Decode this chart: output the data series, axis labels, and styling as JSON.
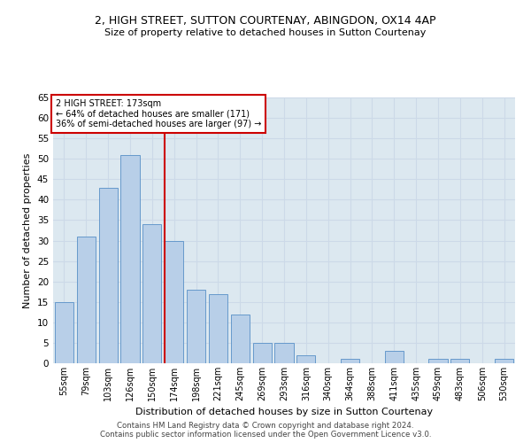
{
  "title": "2, HIGH STREET, SUTTON COURTENAY, ABINGDON, OX14 4AP",
  "subtitle": "Size of property relative to detached houses in Sutton Courtenay",
  "xlabel": "Distribution of detached houses by size in Sutton Courtenay",
  "ylabel": "Number of detached properties",
  "categories": [
    "55sqm",
    "79sqm",
    "103sqm",
    "126sqm",
    "150sqm",
    "174sqm",
    "198sqm",
    "221sqm",
    "245sqm",
    "269sqm",
    "293sqm",
    "316sqm",
    "340sqm",
    "364sqm",
    "388sqm",
    "411sqm",
    "435sqm",
    "459sqm",
    "483sqm",
    "506sqm",
    "530sqm"
  ],
  "values": [
    15,
    31,
    43,
    51,
    34,
    30,
    18,
    17,
    12,
    5,
    5,
    2,
    0,
    1,
    0,
    3,
    0,
    1,
    1,
    0,
    1
  ],
  "bar_color": "#b8cfe8",
  "bar_edge_color": "#6699cc",
  "grid_color": "#ccd9e8",
  "bg_color": "#dce8f0",
  "property_label": "2 HIGH STREET: 173sqm",
  "annotation_line1": "← 64% of detached houses are smaller (171)",
  "annotation_line2": "36% of semi-detached houses are larger (97) →",
  "vline_color": "#cc0000",
  "vline_position": 4.58,
  "annotation_box_color": "#cc0000",
  "footer_line1": "Contains HM Land Registry data © Crown copyright and database right 2024.",
  "footer_line2": "Contains public sector information licensed under the Open Government Licence v3.0.",
  "ylim": [
    0,
    65
  ],
  "yticks": [
    0,
    5,
    10,
    15,
    20,
    25,
    30,
    35,
    40,
    45,
    50,
    55,
    60,
    65
  ]
}
